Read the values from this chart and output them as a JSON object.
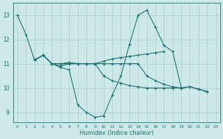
{
  "xlabel": "Humidex (Indice chaleur)",
  "bg_color": "#cce8e8",
  "grid_color": "#aacece",
  "line_color": "#1a7070",
  "xlim_min": -0.5,
  "xlim_max": 23.5,
  "ylim_min": 8.6,
  "ylim_max": 13.5,
  "yticks": [
    9,
    10,
    11,
    12,
    13
  ],
  "xticks": [
    0,
    1,
    2,
    3,
    4,
    5,
    6,
    7,
    8,
    9,
    10,
    11,
    12,
    13,
    14,
    15,
    16,
    17,
    18,
    19,
    20,
    21,
    22,
    23
  ],
  "series": [
    {
      "x": [
        0,
        1,
        2,
        3,
        4,
        5,
        6,
        7,
        8,
        9,
        10,
        11,
        12,
        13,
        14,
        15,
        16,
        17,
        18,
        19,
        20,
        21,
        22
      ],
      "y": [
        13.0,
        12.2,
        11.15,
        11.35,
        11.0,
        10.85,
        10.75,
        9.3,
        9.0,
        8.8,
        8.85,
        9.7,
        10.5,
        11.8,
        13.0,
        13.2,
        12.5,
        11.75,
        11.5,
        10.0,
        10.05,
        9.95,
        9.85
      ]
    },
    {
      "x": [
        2,
        3,
        4,
        5,
        6,
        7,
        8,
        9,
        10,
        11,
        12,
        13,
        14,
        15,
        16,
        17,
        18,
        19,
        20,
        21,
        22
      ],
      "y": [
        11.15,
        11.35,
        11.0,
        11.0,
        11.05,
        11.0,
        11.0,
        11.0,
        11.0,
        11.0,
        11.0,
        11.0,
        11.0,
        10.5,
        10.3,
        10.15,
        10.05,
        10.0,
        10.05,
        9.95,
        9.85
      ]
    },
    {
      "x": [
        2,
        3,
        4,
        5,
        6,
        7,
        8,
        9,
        10,
        11,
        12,
        13,
        14,
        15,
        16,
        17
      ],
      "y": [
        11.15,
        11.35,
        11.0,
        10.9,
        11.0,
        11.0,
        11.0,
        11.0,
        11.1,
        11.2,
        11.25,
        11.3,
        11.35,
        11.4,
        11.45,
        11.5
      ]
    },
    {
      "x": [
        2,
        3,
        4,
        5,
        6,
        7,
        8,
        9,
        10,
        11,
        12,
        13,
        14,
        15,
        16,
        17,
        18,
        19,
        20,
        21,
        22
      ],
      "y": [
        11.15,
        11.35,
        11.0,
        11.0,
        11.0,
        11.0,
        11.0,
        11.0,
        10.5,
        10.3,
        10.2,
        10.1,
        10.05,
        10.0,
        10.0,
        10.0,
        10.0,
        10.0,
        10.05,
        9.95,
        9.85
      ]
    }
  ]
}
